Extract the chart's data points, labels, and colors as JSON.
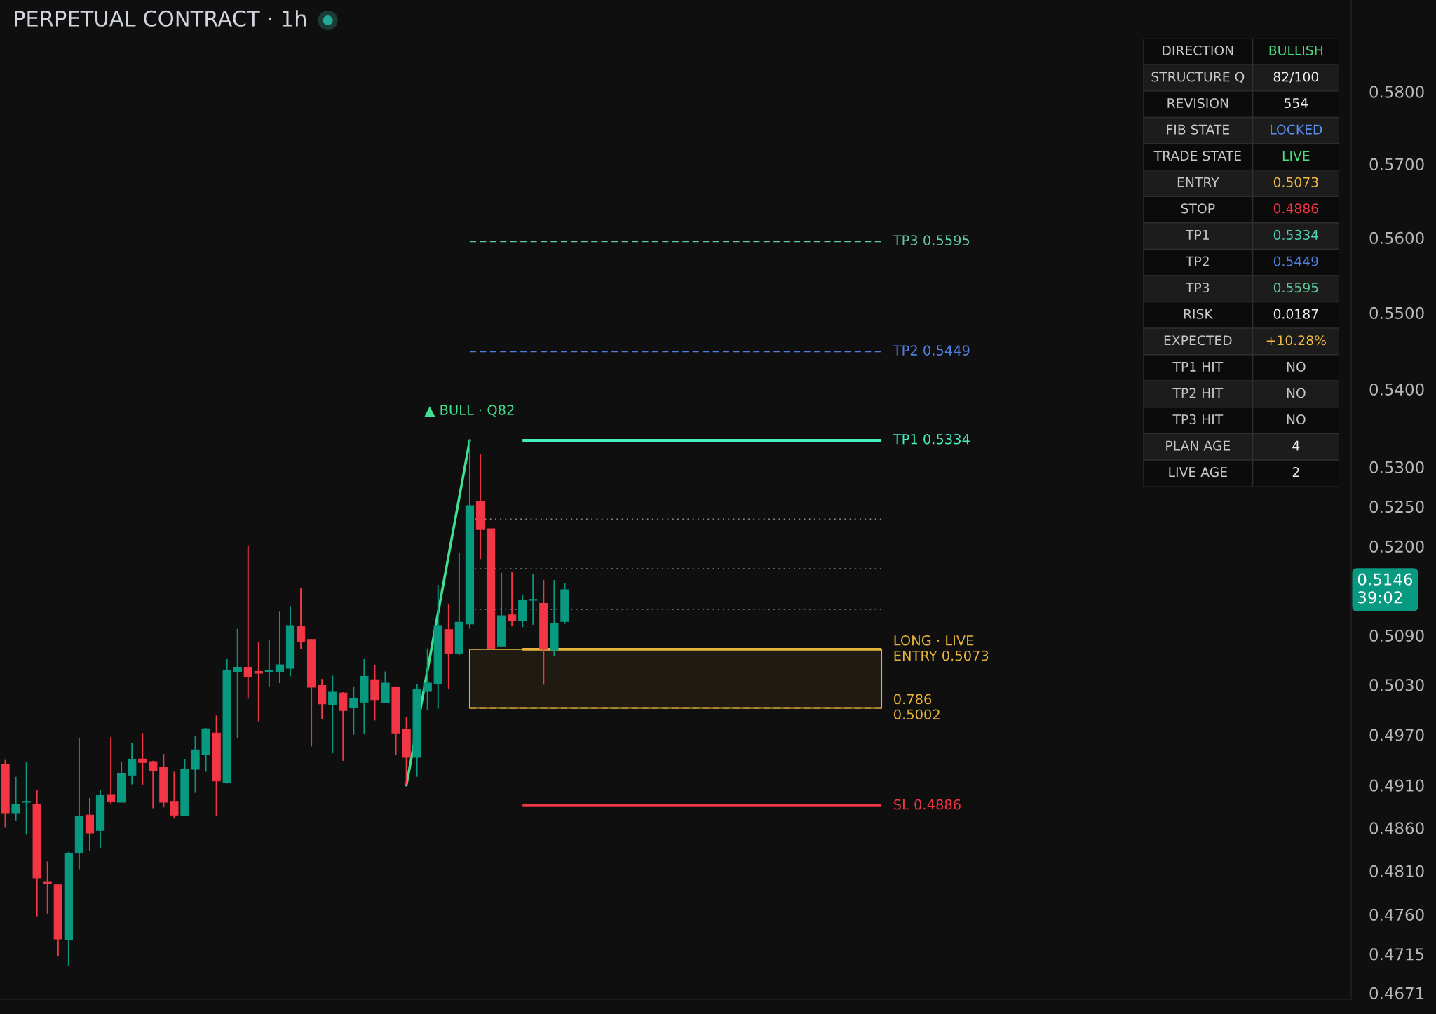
{
  "chart_data": [
    {
      "type": "candlestick",
      "title": "PERPETUAL CONTRACT · 1h",
      "categories": [
        null,
        null,
        null,
        null,
        null,
        null,
        null,
        null,
        null,
        null,
        null,
        null,
        null,
        null,
        null,
        null,
        null,
        null,
        null,
        null,
        null,
        null,
        null,
        null,
        null,
        null,
        null,
        null,
        null,
        null,
        null,
        null,
        null,
        null,
        null,
        null,
        null,
        null,
        null,
        null,
        null,
        null,
        null,
        null,
        null,
        null,
        null,
        null,
        null,
        null,
        null,
        null,
        null,
        null,
        null,
        null,
        null,
        null,
        null,
        null,
        null,
        null,
        null,
        null,
        null,
        null,
        null,
        null,
        null,
        null,
        null,
        null,
        null,
        null,
        null,
        null,
        null,
        null,
        null,
        null,
        null,
        null,
        null,
        null,
        null,
        null,
        null,
        null,
        null,
        null,
        null,
        null,
        null,
        null,
        null,
        null,
        null,
        null,
        null,
        null,
        null,
        null,
        null,
        null,
        null,
        null,
        null,
        null,
        null,
        null,
        null,
        null,
        null,
        null,
        null,
        null,
        null,
        null,
        null,
        null,
        null,
        null,
        null,
        null,
        null,
        null,
        null,
        null
      ],
      "ohlc": [
        [
          0.4935,
          0.494,
          0.486,
          0.4877
        ],
        [
          0.4877,
          0.492,
          0.4868,
          0.4887
        ],
        [
          0.489,
          0.4938,
          0.4852,
          0.4891
        ],
        [
          0.4888,
          0.4904,
          0.4758,
          0.4802
        ],
        [
          0.4797,
          0.4821,
          0.4761,
          0.4795
        ],
        [
          0.4794,
          0.4795,
          0.4712,
          0.4732
        ],
        [
          0.4731,
          0.4832,
          0.4702,
          0.483
        ],
        [
          0.4831,
          0.4966,
          0.4812,
          0.4874
        ],
        [
          0.4875,
          0.4895,
          0.4833,
          0.4854
        ],
        [
          0.4857,
          0.4904,
          0.4837,
          0.4898
        ],
        [
          0.4899,
          0.4967,
          0.4888,
          0.4891
        ],
        [
          0.489,
          0.4938,
          0.489,
          0.4924
        ],
        [
          0.4922,
          0.496,
          0.4911,
          0.494
        ],
        [
          0.4941,
          0.4972,
          0.491,
          0.4937
        ],
        [
          0.4938,
          0.4939,
          0.4883,
          0.4927
        ],
        [
          0.4931,
          0.4947,
          0.4884,
          0.489
        ],
        [
          0.4891,
          0.4926,
          0.4871,
          0.4875
        ],
        [
          0.4874,
          0.4941,
          0.4874,
          0.4929
        ],
        [
          0.4929,
          0.4968,
          0.4901,
          0.4952
        ],
        [
          0.4946,
          0.4978,
          0.4926,
          0.4977
        ],
        [
          0.4972,
          0.4993,
          0.4874,
          0.4915
        ],
        [
          0.4913,
          0.5061,
          0.4912,
          0.5047
        ],
        [
          0.5046,
          0.5098,
          0.4966,
          0.5051
        ],
        [
          0.5051,
          0.5201,
          0.5013,
          0.504
        ],
        [
          0.5046,
          0.5082,
          0.4986,
          0.5044
        ],
        [
          0.5046,
          0.5085,
          0.5028,
          0.5047
        ],
        [
          0.5046,
          0.5119,
          0.5032,
          0.5054
        ],
        [
          0.505,
          0.5126,
          0.504,
          0.5102
        ],
        [
          0.5101,
          0.5148,
          0.5073,
          0.5082
        ],
        [
          0.5085,
          0.5085,
          0.4956,
          0.5027
        ],
        [
          0.5029,
          0.5037,
          0.4989,
          0.5007
        ],
        [
          0.5006,
          0.5041,
          0.4948,
          0.5021
        ],
        [
          0.502,
          0.5021,
          0.4939,
          0.4999
        ],
        [
          0.5002,
          0.5028,
          0.497,
          0.5013
        ],
        [
          0.5009,
          0.5061,
          0.4971,
          0.504
        ],
        [
          0.5036,
          0.5054,
          0.4987,
          0.5012
        ],
        [
          0.5008,
          0.5046,
          0.5008,
          0.5032
        ],
        [
          0.5027,
          0.5028,
          0.4946,
          0.4972
        ],
        [
          0.4976,
          0.4991,
          0.491,
          0.4943
        ],
        [
          0.4943,
          0.5031,
          0.492,
          0.5024
        ],
        [
          0.5022,
          0.5074,
          0.5,
          0.5032
        ],
        [
          0.5031,
          0.5152,
          0.5001,
          0.5102
        ],
        [
          0.5097,
          0.5128,
          0.5025,
          0.5068
        ],
        [
          0.5068,
          0.5192,
          0.5066,
          0.5106
        ],
        [
          0.5104,
          0.5334,
          0.5098,
          0.5251
        ],
        [
          0.5256,
          0.5316,
          0.5184,
          0.5221
        ],
        [
          0.5222,
          0.5222,
          0.5074,
          0.5074
        ],
        [
          0.5077,
          0.5167,
          0.5076,
          0.5114
        ],
        [
          0.5115,
          0.5168,
          0.5101,
          0.5108
        ],
        [
          0.5108,
          0.514,
          0.51,
          0.5133
        ],
        [
          0.5133,
          0.5166,
          0.5103,
          0.5134
        ],
        [
          0.5129,
          0.5158,
          0.503,
          0.5073
        ],
        [
          0.5072,
          0.5158,
          0.5065,
          0.5105
        ],
        [
          0.5107,
          0.5154,
          0.5104,
          0.5146
        ],
        null,
        null,
        null,
        null,
        null,
        null,
        null,
        null,
        null,
        null,
        null,
        null,
        null,
        null,
        null,
        null,
        null,
        null,
        null,
        null,
        null,
        null,
        null,
        null,
        null,
        null,
        null,
        null,
        null,
        null,
        null,
        null,
        null,
        null,
        null,
        null,
        null,
        null,
        null,
        null,
        null,
        null,
        null,
        null,
        null,
        null,
        null,
        null,
        null,
        null,
        null,
        null,
        null,
        null,
        null,
        null,
        null,
        null,
        null,
        null,
        null,
        null,
        null,
        null,
        null,
        null,
        null,
        null,
        null,
        null,
        null,
        null,
        null,
        null
      ],
      "colors": [
        "#f23645",
        "#089981",
        "#089981",
        "#f23645",
        "#f23645",
        "#f23645",
        "#089981",
        "#089981",
        "#f23645",
        "#089981",
        "#f23645",
        "#089981",
        "#089981",
        "#f23645",
        "#f23645",
        "#f23645",
        "#f23645",
        "#089981",
        "#089981",
        "#089981",
        "#f23645",
        "#089981",
        "#089981",
        "#f23645",
        "#f23645",
        "#089981",
        "#089981",
        "#089981",
        "#f23645",
        "#f23645",
        "#f23645",
        "#089981",
        "#f23645",
        "#089981",
        "#089981",
        "#f23645",
        "#089981",
        "#f23645",
        "#f23645",
        "#089981",
        "#089981",
        "#089981",
        "#f23645",
        "#089981",
        "#089981",
        "#f23645",
        "#f23645",
        "#089981",
        "#f23645",
        "#089981",
        "#089981",
        "#f23645",
        "#089981",
        "#089981",
        null,
        null,
        null,
        null,
        null,
        null,
        null,
        null,
        null,
        null,
        null,
        null,
        null,
        null,
        null,
        null,
        null,
        null,
        null,
        null,
        null,
        null,
        null,
        null,
        null,
        null,
        null,
        null,
        null,
        null,
        null,
        null,
        null,
        null,
        null,
        null,
        null,
        null,
        null,
        null,
        null,
        null,
        null,
        null,
        null,
        null,
        null,
        null,
        null,
        null,
        null,
        null,
        null,
        null,
        null,
        null,
        null,
        null,
        null,
        null,
        null,
        null,
        null,
        null,
        null,
        null,
        null,
        null,
        null,
        null,
        null,
        null,
        null,
        null
      ],
      "series": [
        {
          "type": "line",
          "color": "#40e090",
          "values": [
            null,
            null,
            null,
            null,
            null,
            null,
            null,
            null,
            null,
            null,
            null,
            null,
            null,
            null,
            null,
            null,
            null,
            null,
            null,
            null,
            null,
            null,
            null,
            null,
            null,
            null,
            null,
            null,
            null,
            null,
            null,
            null,
            null,
            null,
            null,
            null,
            null,
            null,
            0.491,
            null,
            null,
            null,
            null,
            null,
            0.5334,
            null,
            null,
            null,
            null,
            null,
            null,
            null,
            null,
            null,
            null,
            null,
            null,
            null,
            null,
            null,
            null,
            null,
            null,
            null,
            null,
            null,
            null,
            null,
            null,
            null,
            null,
            null,
            null,
            null,
            null,
            null,
            null,
            null,
            null,
            null,
            null,
            null,
            null,
            null,
            null,
            null,
            null,
            null,
            null,
            null,
            null,
            null,
            null,
            null,
            null,
            null,
            null,
            null,
            null,
            null,
            null,
            null,
            null,
            null,
            null,
            null,
            null,
            null,
            null,
            null,
            null,
            null,
            null,
            null,
            null,
            null,
            null,
            null,
            null,
            null,
            null,
            null,
            null,
            null,
            null,
            null,
            null,
            null
          ]
        }
      ],
      "log": true,
      "ylim": [
        0.4664,
        0.5929
      ],
      "yticks": [
        {
          "value": 0.58,
          "label": "0.5800"
        },
        {
          "value": 0.57,
          "label": "0.5700"
        },
        {
          "value": 0.56,
          "label": "0.5600"
        },
        {
          "value": 0.55,
          "label": "0.5500"
        },
        {
          "value": 0.54,
          "label": "0.5400"
        },
        {
          "value": 0.53,
          "label": "0.5300"
        },
        {
          "value": 0.525,
          "label": "0.5250"
        },
        {
          "value": 0.52,
          "label": "0.5200"
        },
        {
          "value": 0.509,
          "label": "0.5090"
        },
        {
          "value": 0.503,
          "label": "0.5030"
        },
        {
          "value": 0.497,
          "label": "0.4970"
        },
        {
          "value": 0.491,
          "label": "0.4910"
        },
        {
          "value": 0.486,
          "label": "0.4860"
        },
        {
          "value": 0.481,
          "label": "0.4810"
        },
        {
          "value": 0.476,
          "label": "0.4760"
        },
        {
          "value": 0.4715,
          "label": "0.4715"
        },
        {
          "value": 0.4671,
          "label": "0.4671"
        }
      ],
      "tick_labels": "y",
      "ref_lines": [
        {
          "axis": "y",
          "value": 0.5595,
          "label": "TP3 0.5595",
          "color": "#5fc9a0",
          "line_style": "dashed"
        },
        {
          "axis": "y",
          "value": 0.5449,
          "label": "TP2 0.5449",
          "color": "#4f7fe0",
          "line_style": "dashed"
        },
        {
          "axis": "y",
          "value": 0.5334,
          "label": "TP1 0.5334",
          "color": "#45f0c0",
          "line_style": "solid"
        },
        {
          "axis": "y",
          "value": 0.5234,
          "label": null,
          "color": "#8c8c8c",
          "line_style": "dotted"
        },
        {
          "axis": "y",
          "value": 0.5172,
          "label": null,
          "color": "#8c8c8c",
          "line_style": "dotted"
        },
        {
          "axis": "y",
          "value": 0.5122,
          "label": null,
          "color": "#8c8c8c",
          "line_style": "dotted"
        },
        {
          "axis": "y",
          "value": 0.5073,
          "label": "LONG · LIVE\nENTRY 0.5073",
          "color": "#e8b53c",
          "line_style": "solid"
        },
        {
          "axis": "y",
          "value": 0.5002,
          "label": "0.786\n0.5002",
          "color": "#e8b53c",
          "line_style": "dashed"
        },
        {
          "axis": "y",
          "value": 0.4886,
          "label": "SL 0.4886",
          "color": "#f23645",
          "line_style": "solid"
        }
      ],
      "bands": [
        {
          "axis": "y",
          "from": 0.5002,
          "to": 0.5073,
          "color": "#e8b53c"
        }
      ],
      "annotations": [
        "▲ BULL · Q82",
        "0.5146\n39:02"
      ]
    },
    {
      "type": "other",
      "cells": [
        [
          "DIRECTION",
          "BULLISH"
        ],
        [
          "STRUCTURE Q",
          "82/100"
        ],
        [
          "REVISION",
          "554"
        ],
        [
          "FIB STATE",
          "LOCKED"
        ],
        [
          "TRADE STATE",
          "LIVE"
        ],
        [
          "ENTRY",
          "0.5073"
        ],
        [
          "STOP",
          "0.4886"
        ],
        [
          "TP1",
          "0.5334"
        ],
        [
          "TP2",
          "0.5449"
        ],
        [
          "TP3",
          "0.5595"
        ],
        [
          "RISK",
          "0.0187"
        ],
        [
          "EXPECTED",
          "+10.28%"
        ],
        [
          "TP1 HIT",
          "NO"
        ],
        [
          "TP2 HIT",
          "NO"
        ],
        [
          "TP3 HIT",
          "NO"
        ],
        [
          "PLAN AGE",
          "4"
        ],
        [
          "LIVE AGE",
          "2"
        ]
      ],
      "colors": [
        "#4ade80",
        "#f0f0f0",
        "#f0f0f0",
        "#5b8ff0",
        "#4ade80",
        "#f0b840",
        "#f23645",
        "#4fd1b5",
        "#4f7fe0",
        "#5fc99a",
        "#f0f0f0",
        "#f0b840",
        "#c8c8c8",
        "#c8c8c8",
        "#c8c8c8",
        "#f0f0f0",
        "#f0f0f0"
      ]
    }
  ]
}
